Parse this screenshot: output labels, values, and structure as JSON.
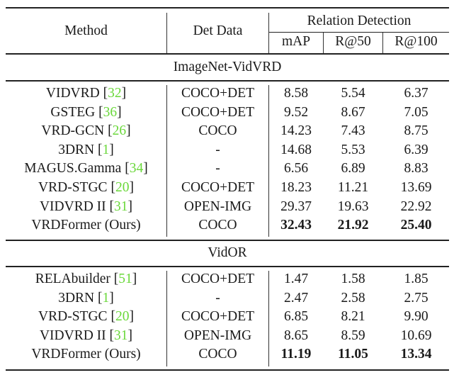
{
  "header": {
    "method": "Method",
    "det_data": "Det Data",
    "group": "Relation Detection",
    "metrics": [
      "mAP",
      "R@50",
      "R@100"
    ]
  },
  "colors": {
    "citation": "#6ad83a",
    "text": "#1a1a1a",
    "rule": "#222222"
  },
  "sections": [
    {
      "title": "ImageNet-VidVRD",
      "rows": [
        {
          "method": "VIDVRD",
          "cite": "32",
          "det": "COCO+DET",
          "map": "8.58",
          "r50": "5.54",
          "r100": "6.37",
          "bold": false
        },
        {
          "method": "GSTEG",
          "cite": "36",
          "det": "COCO+DET",
          "map": "9.52",
          "r50": "8.67",
          "r100": "7.05",
          "bold": false
        },
        {
          "method": "VRD-GCN",
          "cite": "26",
          "det": "COCO",
          "map": "14.23",
          "r50": "7.43",
          "r100": "8.75",
          "bold": false
        },
        {
          "method": "3DRN",
          "cite": "1",
          "det": "-",
          "map": "14.68",
          "r50": "5.53",
          "r100": "6.39",
          "bold": false
        },
        {
          "method": "MAGUS.Gamma",
          "cite": "34",
          "det": "-",
          "map": "6.56",
          "r50": "6.89",
          "r100": "8.83",
          "bold": false
        },
        {
          "method": "VRD-STGC",
          "cite": "20",
          "det": "COCO+DET",
          "map": "18.23",
          "r50": "11.21",
          "r100": "13.69",
          "bold": false
        },
        {
          "method": "VIDVRD II",
          "cite": "31",
          "det": "OPEN-IMG",
          "map": "29.37",
          "r50": "19.63",
          "r100": "22.92",
          "bold": false
        },
        {
          "method": "VRDFormer (Ours)",
          "cite": "",
          "det": "COCO",
          "map": "32.43",
          "r50": "21.92",
          "r100": "25.40",
          "bold": true
        }
      ]
    },
    {
      "title": "VidOR",
      "rows": [
        {
          "method": "RELAbuilder",
          "cite": "51",
          "det": "COCO+DET",
          "map": "1.47",
          "r50": "1.58",
          "r100": "1.85",
          "bold": false
        },
        {
          "method": "3DRN",
          "cite": "1",
          "det": "-",
          "map": "2.47",
          "r50": "2.58",
          "r100": "2.75",
          "bold": false
        },
        {
          "method": "VRD-STGC",
          "cite": "20",
          "det": "COCO+DET",
          "map": "6.85",
          "r50": "8.21",
          "r100": "9.90",
          "bold": false
        },
        {
          "method": "VIDVRD II",
          "cite": "31",
          "det": "OPEN-IMG",
          "map": "8.65",
          "r50": "8.59",
          "r100": "10.69",
          "bold": false
        },
        {
          "method": "VRDFormer (Ours)",
          "cite": "",
          "det": "COCO",
          "map": "11.19",
          "r50": "11.05",
          "r100": "13.34",
          "bold": true
        }
      ]
    }
  ]
}
